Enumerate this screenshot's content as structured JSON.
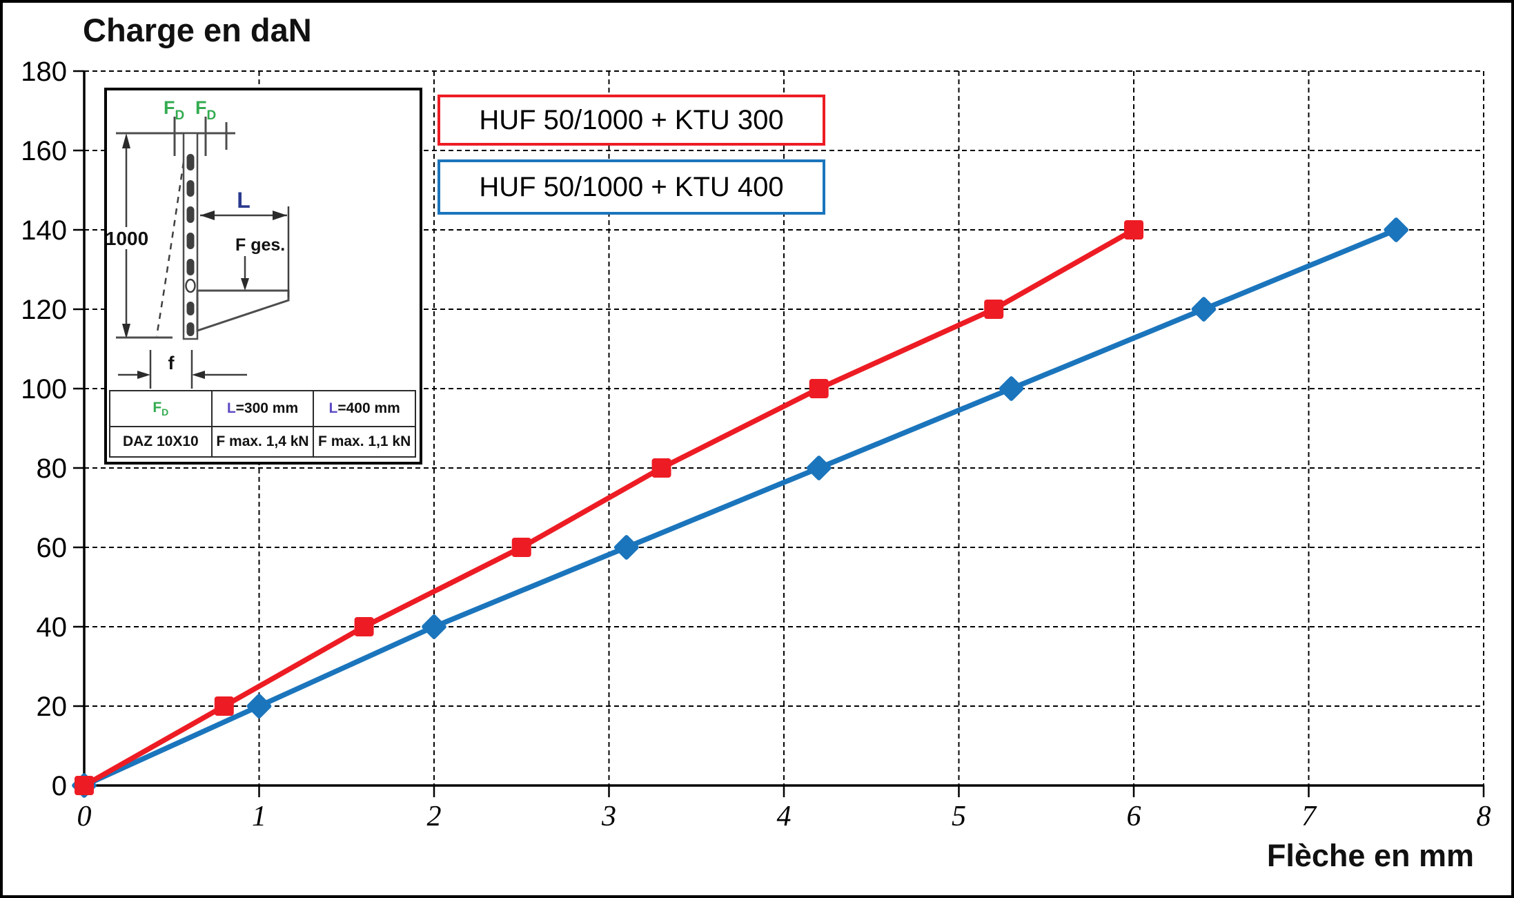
{
  "title": "Charge en daN",
  "x_axis_label": "Flèche en mm",
  "colors": {
    "red": "#ed1c24",
    "blue": "#1b75bc",
    "green": "#33ab4f",
    "navy": "#2b3a8f",
    "violet": "#5b4bc4"
  },
  "chart_data": {
    "type": "line",
    "title": "Charge en daN",
    "xlabel": "Flèche en mm",
    "ylabel": "Charge en daN",
    "xlim": [
      0,
      8
    ],
    "ylim": [
      0,
      180
    ],
    "x_ticks": [
      0,
      1,
      2,
      3,
      4,
      5,
      6,
      7,
      8
    ],
    "y_ticks": [
      0,
      20,
      40,
      60,
      80,
      100,
      120,
      140,
      160,
      180
    ],
    "grid": true,
    "legend_position": "top-left-inside",
    "series": [
      {
        "name": "HUF 50/1000 + KTU 300",
        "color": "#ed1c24",
        "marker": "square",
        "points": [
          [
            0,
            0
          ],
          [
            0.8,
            20
          ],
          [
            1.6,
            40
          ],
          [
            2.5,
            60
          ],
          [
            3.3,
            80
          ],
          [
            4.2,
            100
          ],
          [
            5.2,
            120
          ],
          [
            6.0,
            140
          ]
        ]
      },
      {
        "name": "HUF 50/1000 + KTU 400",
        "color": "#1b75bc",
        "marker": "diamond",
        "points": [
          [
            0,
            0
          ],
          [
            1.0,
            20
          ],
          [
            2.0,
            40
          ],
          [
            3.1,
            60
          ],
          [
            4.2,
            80
          ],
          [
            5.3,
            100
          ],
          [
            6.4,
            120
          ],
          [
            7.5,
            140
          ]
        ]
      }
    ]
  },
  "legend": {
    "items": [
      {
        "label": "HUF 50/1000 + KTU 300",
        "color": "#ed1c24"
      },
      {
        "label": "HUF 50/1000 + KTU 400",
        "color": "#1b75bc"
      }
    ]
  },
  "inset": {
    "diagram": {
      "force_main": "F",
      "force_sub": "D",
      "height_label": "1000",
      "arm_label": "L",
      "load_label": "F ges.",
      "deflection_label": "f"
    },
    "table": {
      "header_f_main": "F",
      "header_f_sub": "D",
      "header_l300_l": "L",
      "header_l300_rest": "=300 mm",
      "header_l400_l": "L",
      "header_l400_rest": "=400 mm",
      "row_anchor": "DAZ 10X10",
      "row_l300": "F max. 1,4 kN",
      "row_l400": "F max. 1,1 kN"
    }
  }
}
